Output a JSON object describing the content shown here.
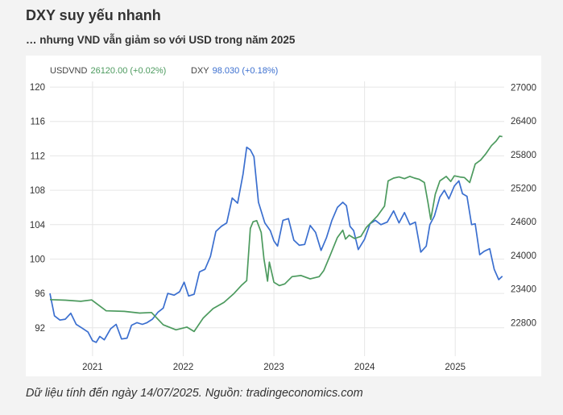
{
  "page": {
    "title": "DXY suy yếu nhanh",
    "subtitle": "… nhưng VND vẫn giảm so với USD trong năm 2025",
    "footer": "Dữ liệu tính đến ngày 14/07/2025. Nguồn: tradingeconomics.com"
  },
  "colors": {
    "usdvnd": "#4c9a5e",
    "dxy": "#3b6fcf",
    "grid": "#e6e6e6",
    "axis_text": "#333333",
    "legend_name": "#444444"
  },
  "chart_data": {
    "type": "line",
    "grid": true,
    "legend_placement": "top-left",
    "legend": [
      {
        "name": "USDVND",
        "value": "26120.00",
        "change": "(+0.02%)",
        "series": "usdvnd"
      },
      {
        "name": "DXY",
        "value": "98.030",
        "change": "(+0.18%)",
        "series": "dxy"
      }
    ],
    "x_ticks": [
      "2021",
      "2022",
      "2023",
      "2024",
      "2025"
    ],
    "x_tick_values": [
      2021.0,
      2022.0,
      2023.0,
      2024.0,
      2025.0
    ],
    "xlim": [
      2020.53,
      2025.54
    ],
    "y_left": {
      "ticks": [
        "120",
        "116",
        "112",
        "108",
        "104",
        "100",
        "96",
        "92"
      ],
      "lim": [
        88.7,
        120.1
      ]
    },
    "y_right": {
      "ticks": [
        "27000",
        "26400",
        "25800",
        "25200",
        "24600",
        "24000",
        "23400",
        "22800"
      ],
      "lim": [
        22200,
        27020
      ]
    },
    "series": [
      {
        "name": "DXY",
        "axis": "left",
        "key": "dxy",
        "x": [
          2020.53,
          2020.58,
          2020.64,
          2020.7,
          2020.76,
          2020.82,
          2020.88,
          2020.95,
          2021.0,
          2021.04,
          2021.08,
          2021.13,
          2021.2,
          2021.26,
          2021.32,
          2021.38,
          2021.43,
          2021.49,
          2021.55,
          2021.6,
          2021.66,
          2021.72,
          2021.78,
          2021.83,
          2021.9,
          2021.96,
          2022.01,
          2022.06,
          2022.12,
          2022.18,
          2022.24,
          2022.3,
          2022.36,
          2022.42,
          2022.48,
          2022.54,
          2022.6,
          2022.66,
          2022.7,
          2022.74,
          2022.78,
          2022.83,
          2022.9,
          2022.96,
          2023.0,
          2023.04,
          2023.1,
          2023.16,
          2023.22,
          2023.28,
          2023.34,
          2023.4,
          2023.46,
          2023.52,
          2023.58,
          2023.64,
          2023.7,
          2023.76,
          2023.8,
          2023.84,
          2023.88,
          2023.93,
          2024.0,
          2024.06,
          2024.12,
          2024.18,
          2024.25,
          2024.32,
          2024.38,
          2024.44,
          2024.5,
          2024.56,
          2024.62,
          2024.68,
          2024.72,
          2024.77,
          2024.83,
          2024.88,
          2024.93,
          2024.99,
          2025.04,
          2025.08,
          2025.13,
          2025.18,
          2025.22,
          2025.27,
          2025.32,
          2025.38,
          2025.43,
          2025.48,
          2025.52
        ],
        "y": [
          96.0,
          93.4,
          92.9,
          93.0,
          93.7,
          92.4,
          92.0,
          91.5,
          90.5,
          90.3,
          91.0,
          90.6,
          91.9,
          92.4,
          90.7,
          90.8,
          92.3,
          92.6,
          92.4,
          92.6,
          93.0,
          93.8,
          94.3,
          96.0,
          95.8,
          96.2,
          97.3,
          95.7,
          95.9,
          98.5,
          98.8,
          100.3,
          103.2,
          103.8,
          104.2,
          107.1,
          106.5,
          109.9,
          113.0,
          112.7,
          111.9,
          106.6,
          104.2,
          103.3,
          102.1,
          101.5,
          104.5,
          104.7,
          102.2,
          101.6,
          101.7,
          103.9,
          103.1,
          101.0,
          102.5,
          104.5,
          106.0,
          106.6,
          106.2,
          103.8,
          103.3,
          101.1,
          102.3,
          104.1,
          104.5,
          104.0,
          104.3,
          105.6,
          104.2,
          105.4,
          104.0,
          104.3,
          100.8,
          101.5,
          104.0,
          105.0,
          107.2,
          108.0,
          107.0,
          108.5,
          109.1,
          107.6,
          107.3,
          104.0,
          104.1,
          100.5,
          100.9,
          101.2,
          98.8,
          97.6,
          98.0
        ]
      },
      {
        "name": "USDVND",
        "axis": "right",
        "key": "usdvnd",
        "x": [
          2020.53,
          2020.7,
          2020.87,
          2020.99,
          2021.15,
          2021.35,
          2021.52,
          2021.65,
          2021.78,
          2021.92,
          2022.04,
          2022.12,
          2022.22,
          2022.33,
          2022.45,
          2022.56,
          2022.64,
          2022.7,
          2022.74,
          2022.77,
          2022.81,
          2022.83,
          2022.86,
          2022.89,
          2022.93,
          2022.95,
          2023.0,
          2023.06,
          2023.12,
          2023.2,
          2023.3,
          2023.4,
          2023.5,
          2023.55,
          2023.62,
          2023.7,
          2023.76,
          2023.79,
          2023.83,
          2023.89,
          2023.96,
          2024.02,
          2024.08,
          2024.14,
          2024.22,
          2024.26,
          2024.32,
          2024.38,
          2024.44,
          2024.5,
          2024.55,
          2024.6,
          2024.66,
          2024.7,
          2024.73,
          2024.78,
          2024.83,
          2024.9,
          2024.95,
          2024.99,
          2025.05,
          2025.1,
          2025.16,
          2025.22,
          2025.28,
          2025.34,
          2025.4,
          2025.45,
          2025.49,
          2025.52
        ],
        "y": [
          23210,
          23200,
          23180,
          23205,
          23010,
          23000,
          22970,
          22980,
          22760,
          22670,
          22720,
          22640,
          22880,
          23050,
          23160,
          23320,
          23460,
          23550,
          24480,
          24600,
          24620,
          24540,
          24410,
          23940,
          23540,
          23880,
          23520,
          23460,
          23490,
          23620,
          23640,
          23580,
          23620,
          23730,
          24000,
          24320,
          24450,
          24290,
          24360,
          24300,
          24340,
          24500,
          24600,
          24700,
          24880,
          25330,
          25380,
          25400,
          25370,
          25410,
          25380,
          25360,
          25300,
          24940,
          24640,
          25090,
          25330,
          25410,
          25320,
          25420,
          25400,
          25390,
          25300,
          25630,
          25700,
          25820,
          25960,
          26040,
          26130,
          26120
        ]
      }
    ]
  }
}
